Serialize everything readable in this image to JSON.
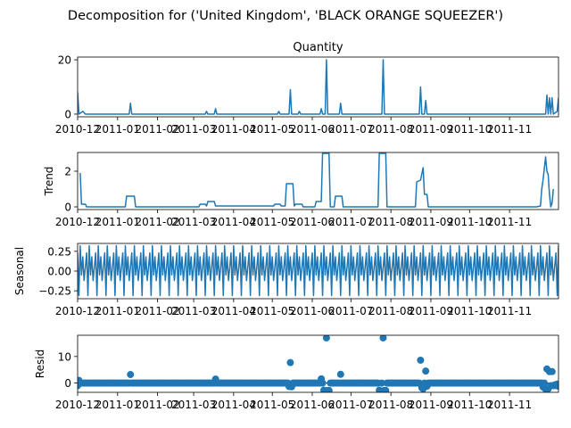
{
  "suptitle": "Decomposition for ('United Kingdom', 'BLACK ORANGE SQUEEZER')",
  "line_color": "#1f77b4",
  "x_tick_labels": [
    "2010-12",
    "2011-01",
    "2011-02",
    "2011-03",
    "2011-04",
    "2011-05",
    "2011-06",
    "2011-07",
    "2011-08",
    "2011-09",
    "2011-10",
    "2011-11"
  ],
  "chart_data": [
    {
      "type": "line",
      "title": "Quantity",
      "ylabel": "",
      "xlim": [
        "2010-12-01",
        "2011-12-09"
      ],
      "ylim": [
        -1,
        21
      ],
      "yticks": [
        0,
        20
      ],
      "points": [
        [
          "2010-12-01",
          8
        ],
        [
          "2010-12-02",
          0
        ],
        [
          "2010-12-05",
          1
        ],
        [
          "2010-12-07",
          0
        ],
        [
          "2011-01-10",
          0
        ],
        [
          "2011-01-11",
          4
        ],
        [
          "2011-01-12",
          0
        ],
        [
          "2011-03-10",
          0
        ],
        [
          "2011-03-11",
          1
        ],
        [
          "2011-03-12",
          0
        ],
        [
          "2011-03-17",
          0
        ],
        [
          "2011-03-18",
          2
        ],
        [
          "2011-03-19",
          0
        ],
        [
          "2011-05-05",
          0
        ],
        [
          "2011-05-06",
          1
        ],
        [
          "2011-05-07",
          0
        ],
        [
          "2011-05-14",
          0
        ],
        [
          "2011-05-15",
          9
        ],
        [
          "2011-05-16",
          0
        ],
        [
          "2011-05-21",
          0
        ],
        [
          "2011-05-22",
          1
        ],
        [
          "2011-05-23",
          0
        ],
        [
          "2011-06-07",
          0
        ],
        [
          "2011-06-08",
          2
        ],
        [
          "2011-06-09",
          0
        ],
        [
          "2011-06-11",
          0
        ],
        [
          "2011-06-12",
          20
        ],
        [
          "2011-06-13",
          0
        ],
        [
          "2011-06-22",
          0
        ],
        [
          "2011-06-23",
          4
        ],
        [
          "2011-06-24",
          0
        ],
        [
          "2011-07-25",
          0
        ],
        [
          "2011-07-26",
          20
        ],
        [
          "2011-07-27",
          0
        ],
        [
          "2011-08-23",
          0
        ],
        [
          "2011-08-24",
          10
        ],
        [
          "2011-08-25",
          0
        ],
        [
          "2011-08-27",
          0
        ],
        [
          "2011-08-28",
          5
        ],
        [
          "2011-08-29",
          0
        ],
        [
          "2011-11-29",
          0
        ],
        [
          "2011-11-30",
          7
        ],
        [
          "2011-12-01",
          0
        ],
        [
          "2011-12-02",
          6
        ],
        [
          "2011-12-03",
          0
        ],
        [
          "2011-12-04",
          6
        ],
        [
          "2011-12-05",
          0
        ],
        [
          "2011-12-08",
          1
        ],
        [
          "2011-12-09",
          6
        ]
      ]
    },
    {
      "type": "line",
      "title": "",
      "ylabel": "Trend",
      "xlim": [
        "2010-12-01",
        "2011-12-09"
      ],
      "ylim": [
        -0.15,
        3.05
      ],
      "yticks": [
        0,
        2
      ],
      "points": [
        [
          "2010-12-03",
          1.9
        ],
        [
          "2010-12-04",
          0.15
        ],
        [
          "2010-12-07",
          0.15
        ],
        [
          "2010-12-08",
          0
        ],
        [
          "2011-01-07",
          0
        ],
        [
          "2011-01-08",
          0.6
        ],
        [
          "2011-01-14",
          0.6
        ],
        [
          "2011-01-15",
          0
        ],
        [
          "2011-03-05",
          0
        ],
        [
          "2011-03-06",
          0.15
        ],
        [
          "2011-03-10",
          0.15
        ],
        [
          "2011-03-11",
          0.05
        ],
        [
          "2011-03-12",
          0.3
        ],
        [
          "2011-03-17",
          0.3
        ],
        [
          "2011-03-18",
          0.05
        ],
        [
          "2011-05-02",
          0.05
        ],
        [
          "2011-05-03",
          0.15
        ],
        [
          "2011-05-07",
          0.15
        ],
        [
          "2011-05-08",
          0.05
        ],
        [
          "2011-05-11",
          0.05
        ],
        [
          "2011-05-12",
          1.3
        ],
        [
          "2011-05-17",
          1.3
        ],
        [
          "2011-05-18",
          0.05
        ],
        [
          "2011-05-19",
          0.15
        ],
        [
          "2011-05-24",
          0.15
        ],
        [
          "2011-05-25",
          0
        ],
        [
          "2011-06-03",
          0
        ],
        [
          "2011-06-04",
          0.3
        ],
        [
          "2011-06-08",
          0.3
        ],
        [
          "2011-06-09",
          3
        ],
        [
          "2011-06-14",
          3
        ],
        [
          "2011-06-15",
          0
        ],
        [
          "2011-06-18",
          0
        ],
        [
          "2011-06-19",
          0.6
        ],
        [
          "2011-06-24",
          0.6
        ],
        [
          "2011-06-25",
          0
        ],
        [
          "2011-07-22",
          0
        ],
        [
          "2011-07-23",
          3
        ],
        [
          "2011-07-28",
          3
        ],
        [
          "2011-07-29",
          0
        ],
        [
          "2011-08-20",
          0
        ],
        [
          "2011-08-21",
          1.4
        ],
        [
          "2011-08-24",
          1.5
        ],
        [
          "2011-08-26",
          2.2
        ],
        [
          "2011-08-27",
          0.7
        ],
        [
          "2011-08-29",
          0.7
        ],
        [
          "2011-08-30",
          0
        ],
        [
          "2011-11-22",
          0
        ],
        [
          "2011-11-25",
          0.05
        ],
        [
          "2011-11-26",
          1
        ],
        [
          "2011-11-27",
          1.5
        ],
        [
          "2011-11-29",
          2.8
        ],
        [
          "2011-11-30",
          2
        ],
        [
          "2011-12-01",
          1.8
        ],
        [
          "2011-12-02",
          0.7
        ],
        [
          "2011-12-03",
          0
        ],
        [
          "2011-12-04",
          0.2
        ],
        [
          "2011-12-05",
          1
        ]
      ]
    },
    {
      "type": "line",
      "title": "",
      "ylabel": "Seasonal",
      "xlim": [
        "2010-12-01",
        "2011-12-09"
      ],
      "ylim": [
        -0.35,
        0.35
      ],
      "yticks": [
        -0.25,
        0,
        0.25
      ],
      "ytick_labels": [
        "−0.25",
        "0.00",
        "0.25"
      ],
      "pattern_start": "2010-12-01",
      "weekly_pattern": [
        0.23,
        -0.31,
        0.32,
        -0.05,
        0.18,
        -0.12,
        0.05
      ]
    },
    {
      "type": "scatter",
      "title": "",
      "ylabel": "Resid",
      "xlim": [
        "2010-12-01",
        "2011-12-09"
      ],
      "ylim": [
        -3.5,
        18
      ],
      "yticks": [
        0,
        10
      ],
      "baseline": 0,
      "series_start": "2010-12-01",
      "series_end": "2011-12-09",
      "outliers": [
        [
          "2010-12-01",
          -1
        ],
        [
          "2010-12-02",
          1
        ],
        [
          "2011-01-11",
          3.2
        ],
        [
          "2011-03-18",
          1.5
        ],
        [
          "2011-05-14",
          -1.3
        ],
        [
          "2011-05-15",
          7.7
        ],
        [
          "2011-05-16",
          -1.4
        ],
        [
          "2011-06-08",
          1.6
        ],
        [
          "2011-06-10",
          -2.7
        ],
        [
          "2011-06-11",
          -2.9
        ],
        [
          "2011-06-12",
          17
        ],
        [
          "2011-06-13",
          -2.8
        ],
        [
          "2011-06-14",
          -2.8
        ],
        [
          "2011-06-23",
          3.3
        ],
        [
          "2011-07-23",
          -2.7
        ],
        [
          "2011-07-24",
          -2.9
        ],
        [
          "2011-07-26",
          17
        ],
        [
          "2011-07-27",
          -2.8
        ],
        [
          "2011-07-28",
          -2.8
        ],
        [
          "2011-08-24",
          8.6
        ],
        [
          "2011-08-25",
          -1.8
        ],
        [
          "2011-08-26",
          -2.2
        ],
        [
          "2011-08-28",
          4.5
        ],
        [
          "2011-08-29",
          -1.2
        ],
        [
          "2011-11-27",
          -1.5
        ],
        [
          "2011-11-29",
          -2.3
        ],
        [
          "2011-11-30",
          5.3
        ],
        [
          "2011-12-01",
          -2.2
        ],
        [
          "2011-12-02",
          4.3
        ],
        [
          "2011-12-03",
          -1
        ],
        [
          "2011-12-04",
          4.3
        ],
        [
          "2011-12-05",
          -1
        ],
        [
          "2011-12-06",
          -0.7
        ],
        [
          "2011-12-07",
          -1
        ],
        [
          "2011-12-08",
          -0.4
        ],
        [
          "2011-12-09",
          -1.2
        ]
      ]
    }
  ]
}
